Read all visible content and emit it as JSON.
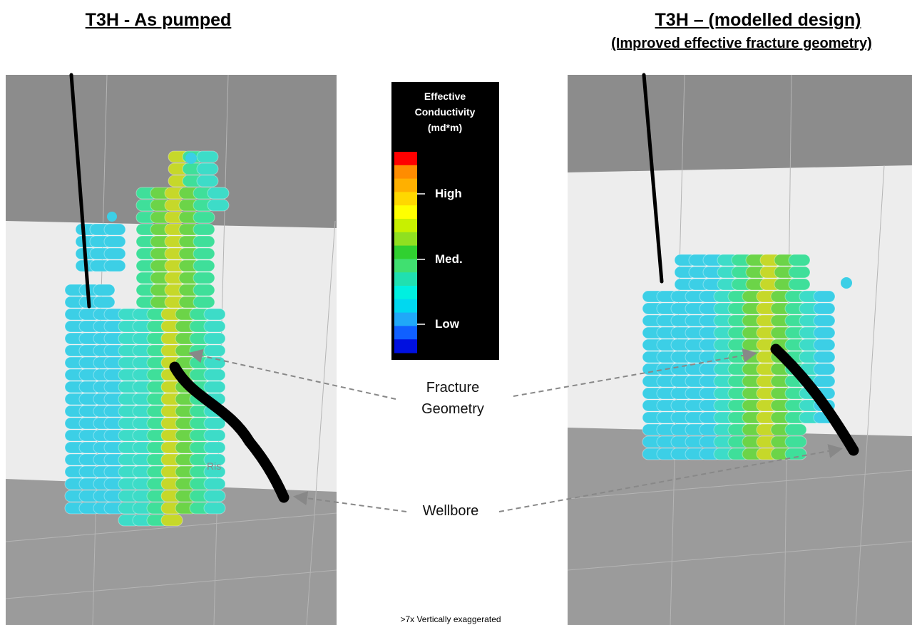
{
  "header": {
    "left_title": "T3H - As pumped",
    "right_title": "T3H – (modelled design)",
    "right_subtitle": "(Improved effective fracture geometry)"
  },
  "legend": {
    "title_lines": [
      "Effective",
      "Conductivity",
      "(md*m)"
    ],
    "labels": [
      "High",
      "Med.",
      "Low"
    ]
  },
  "annotations": {
    "fracture": [
      "Fracture",
      "Geometry"
    ],
    "wellbore": "Wellbore",
    "fragment": "Ris",
    "footnote": ">7x Vertically exaggerated"
  }
}
